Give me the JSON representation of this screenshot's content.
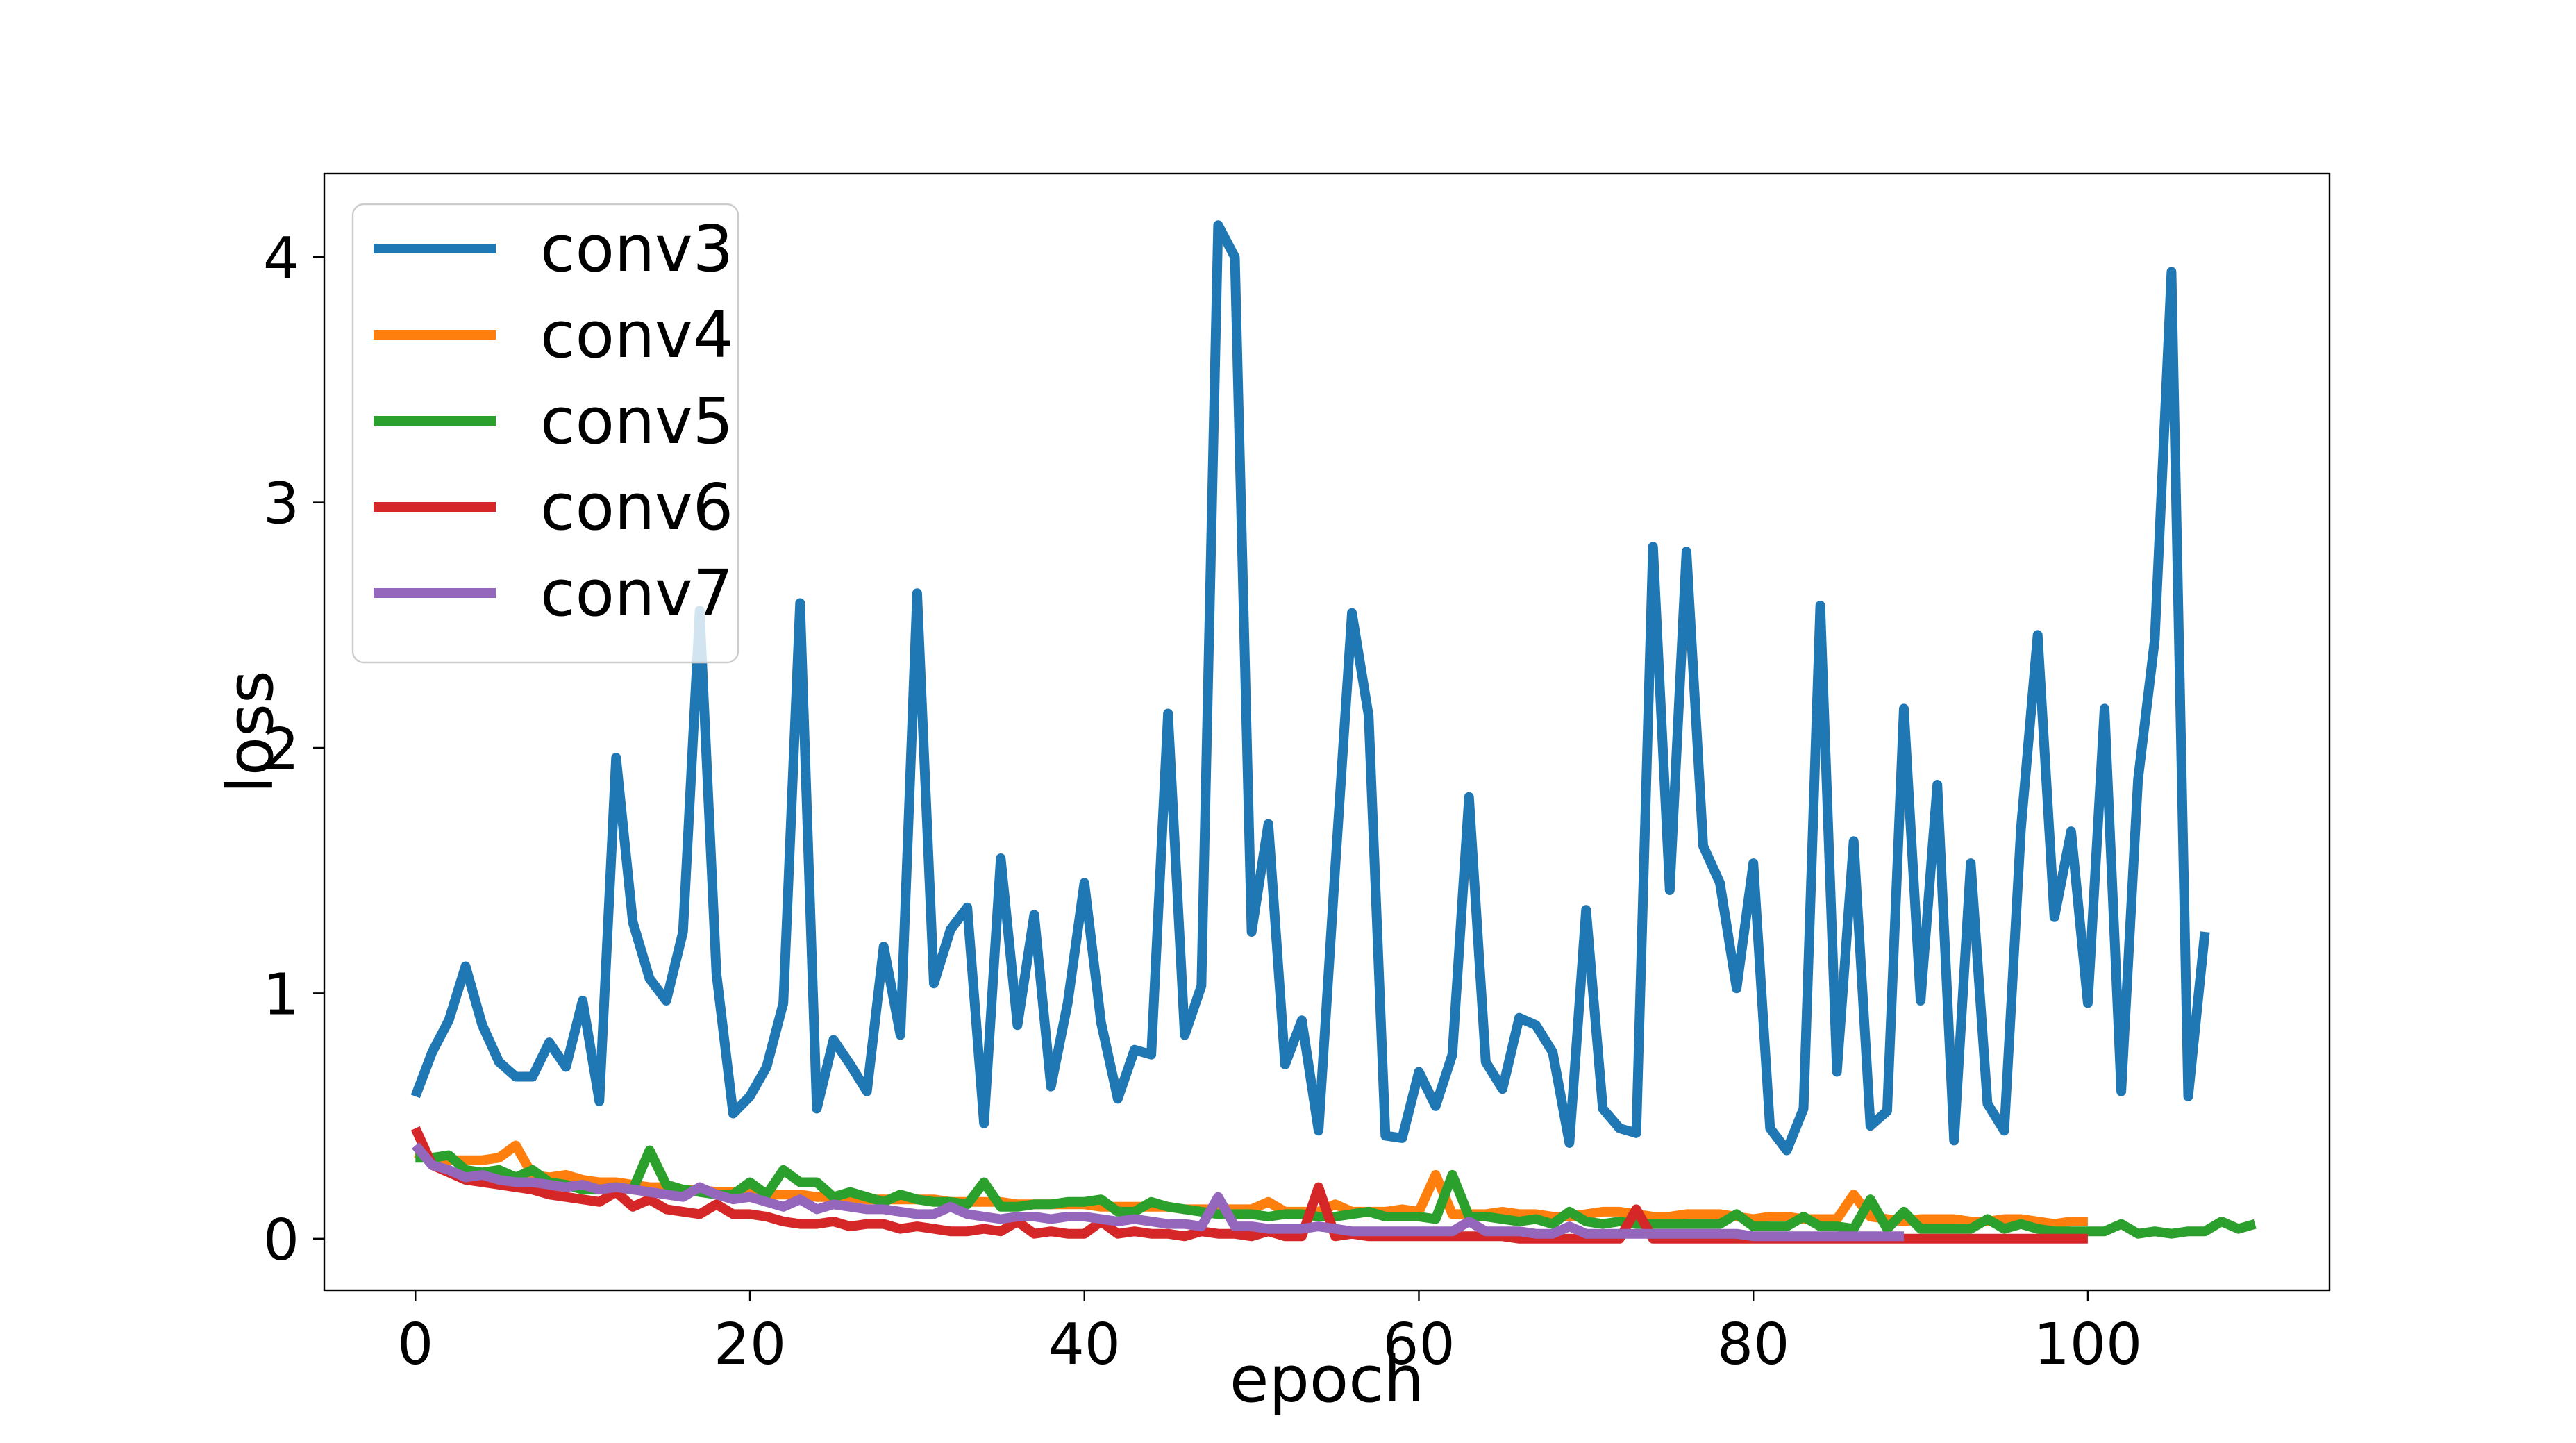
{
  "chart_data": {
    "type": "line",
    "title": "",
    "xlabel": "epoch",
    "ylabel": "loss",
    "xlim": [
      -5.45,
      114.45
    ],
    "ylim": [
      -0.21,
      4.34
    ],
    "xticks": [
      0,
      20,
      40,
      60,
      80,
      100
    ],
    "yticks": [
      0,
      1,
      2,
      3,
      4
    ],
    "grid": false,
    "legend_position": "upper-left",
    "series": [
      {
        "name": "conv3",
        "color": "#1f77b4",
        "x_start": 0,
        "values": [
          0.58,
          0.76,
          0.89,
          1.11,
          0.87,
          0.72,
          0.66,
          0.66,
          0.8,
          0.7,
          0.97,
          0.56,
          1.96,
          1.29,
          1.06,
          0.97,
          1.25,
          2.56,
          1.08,
          0.51,
          0.58,
          0.7,
          0.96,
          2.59,
          0.53,
          0.81,
          0.71,
          0.6,
          1.19,
          0.83,
          2.63,
          1.04,
          1.26,
          1.35,
          0.47,
          1.55,
          0.87,
          1.32,
          0.62,
          0.96,
          1.45,
          0.88,
          0.57,
          0.77,
          0.75,
          2.14,
          0.83,
          1.03,
          4.13,
          4.0,
          1.25,
          1.69,
          0.71,
          0.89,
          0.44,
          1.51,
          2.55,
          2.13,
          0.42,
          0.41,
          0.68,
          0.54,
          0.75,
          1.8,
          0.72,
          0.61,
          0.9,
          0.87,
          0.76,
          0.39,
          1.34,
          0.53,
          0.45,
          0.43,
          2.82,
          1.42,
          2.8,
          1.6,
          1.45,
          1.02,
          1.53,
          0.45,
          0.36,
          0.53,
          2.58,
          0.68,
          1.62,
          0.46,
          0.52,
          2.16,
          0.97,
          1.85,
          0.4,
          1.53,
          0.55,
          0.44,
          1.67,
          2.46,
          1.31,
          1.66,
          0.96,
          2.16,
          0.6,
          1.87,
          2.44,
          3.94,
          0.58,
          1.25
        ]
      },
      {
        "name": "conv4",
        "color": "#ff7f0e",
        "x_start": 0,
        "values": [
          0.35,
          0.33,
          0.32,
          0.32,
          0.32,
          0.33,
          0.38,
          0.26,
          0.25,
          0.26,
          0.24,
          0.23,
          0.23,
          0.22,
          0.21,
          0.21,
          0.2,
          0.2,
          0.19,
          0.19,
          0.19,
          0.18,
          0.18,
          0.18,
          0.17,
          0.17,
          0.17,
          0.16,
          0.16,
          0.16,
          0.16,
          0.16,
          0.15,
          0.15,
          0.15,
          0.15,
          0.14,
          0.14,
          0.14,
          0.14,
          0.14,
          0.13,
          0.13,
          0.13,
          0.13,
          0.13,
          0.12,
          0.12,
          0.12,
          0.12,
          0.12,
          0.15,
          0.11,
          0.11,
          0.11,
          0.14,
          0.11,
          0.11,
          0.11,
          0.12,
          0.11,
          0.26,
          0.1,
          0.1,
          0.1,
          0.11,
          0.1,
          0.1,
          0.09,
          0.09,
          0.1,
          0.11,
          0.11,
          0.1,
          0.09,
          0.09,
          0.1,
          0.1,
          0.1,
          0.09,
          0.08,
          0.09,
          0.09,
          0.08,
          0.08,
          0.08,
          0.18,
          0.09,
          0.08,
          0.07,
          0.08,
          0.08,
          0.08,
          0.07,
          0.07,
          0.08,
          0.08,
          0.07,
          0.06,
          0.07,
          0.07
        ]
      },
      {
        "name": "conv5",
        "color": "#2ca02c",
        "x_start": 0,
        "values": [
          0.33,
          0.33,
          0.34,
          0.28,
          0.27,
          0.28,
          0.25,
          0.28,
          0.23,
          0.22,
          0.2,
          0.2,
          0.21,
          0.2,
          0.36,
          0.22,
          0.2,
          0.19,
          0.18,
          0.18,
          0.23,
          0.18,
          0.28,
          0.23,
          0.23,
          0.17,
          0.19,
          0.17,
          0.15,
          0.18,
          0.16,
          0.15,
          0.15,
          0.14,
          0.23,
          0.13,
          0.13,
          0.14,
          0.14,
          0.15,
          0.15,
          0.16,
          0.11,
          0.11,
          0.15,
          0.13,
          0.12,
          0.11,
          0.1,
          0.1,
          0.1,
          0.09,
          0.1,
          0.1,
          0.09,
          0.09,
          0.1,
          0.11,
          0.09,
          0.09,
          0.09,
          0.08,
          0.26,
          0.09,
          0.09,
          0.08,
          0.07,
          0.08,
          0.06,
          0.11,
          0.07,
          0.06,
          0.07,
          0.06,
          0.06,
          0.06,
          0.06,
          0.06,
          0.06,
          0.1,
          0.05,
          0.05,
          0.05,
          0.09,
          0.05,
          0.05,
          0.04,
          0.16,
          0.04,
          0.11,
          0.04,
          0.04,
          0.04,
          0.04,
          0.08,
          0.04,
          0.06,
          0.04,
          0.03,
          0.03,
          0.03,
          0.03,
          0.06,
          0.02,
          0.03,
          0.02,
          0.03,
          0.03,
          0.07,
          0.04,
          0.06
        ]
      },
      {
        "name": "conv6",
        "color": "#d62728",
        "x_start": 0,
        "values": [
          0.45,
          0.3,
          0.27,
          0.24,
          0.23,
          0.22,
          0.21,
          0.2,
          0.18,
          0.17,
          0.16,
          0.15,
          0.19,
          0.13,
          0.16,
          0.12,
          0.11,
          0.1,
          0.14,
          0.1,
          0.1,
          0.09,
          0.07,
          0.06,
          0.06,
          0.07,
          0.05,
          0.06,
          0.06,
          0.04,
          0.05,
          0.04,
          0.03,
          0.03,
          0.04,
          0.03,
          0.07,
          0.02,
          0.03,
          0.02,
          0.02,
          0.07,
          0.02,
          0.03,
          0.02,
          0.02,
          0.01,
          0.03,
          0.02,
          0.02,
          0.01,
          0.03,
          0.01,
          0.01,
          0.21,
          0.01,
          0.02,
          0.01,
          0.01,
          0.01,
          0.01,
          0.01,
          0.01,
          0.01,
          0.01,
          0.01,
          0.0,
          0.0,
          0.0,
          0.0,
          0.0,
          0.0,
          0.0,
          0.12,
          0.0,
          0.0,
          0.0,
          0.0,
          0.0,
          0.0,
          0.0,
          0.0,
          0.0,
          0.0,
          0.0,
          0.0,
          0.0,
          0.0,
          0.0,
          0.0,
          0.0,
          0.0,
          0.0,
          0.0,
          0.0,
          0.0,
          0.0,
          0.0,
          0.0,
          0.0,
          0.0
        ]
      },
      {
        "name": "conv7",
        "color": "#9467bd",
        "x_start": 0,
        "values": [
          0.38,
          0.3,
          0.28,
          0.25,
          0.26,
          0.24,
          0.23,
          0.23,
          0.22,
          0.21,
          0.22,
          0.2,
          0.21,
          0.2,
          0.19,
          0.18,
          0.17,
          0.21,
          0.18,
          0.16,
          0.17,
          0.15,
          0.13,
          0.16,
          0.12,
          0.14,
          0.13,
          0.12,
          0.12,
          0.11,
          0.1,
          0.1,
          0.13,
          0.1,
          0.09,
          0.08,
          0.09,
          0.09,
          0.08,
          0.09,
          0.09,
          0.08,
          0.07,
          0.08,
          0.07,
          0.06,
          0.06,
          0.05,
          0.17,
          0.05,
          0.05,
          0.04,
          0.04,
          0.04,
          0.05,
          0.04,
          0.03,
          0.03,
          0.03,
          0.03,
          0.03,
          0.03,
          0.03,
          0.07,
          0.03,
          0.03,
          0.03,
          0.02,
          0.02,
          0.05,
          0.02,
          0.02,
          0.02,
          0.02,
          0.02,
          0.02,
          0.02,
          0.02,
          0.02,
          0.02,
          0.01,
          0.01,
          0.01,
          0.01,
          0.01,
          0.01,
          0.01,
          0.01,
          0.01,
          0.01
        ]
      }
    ]
  }
}
